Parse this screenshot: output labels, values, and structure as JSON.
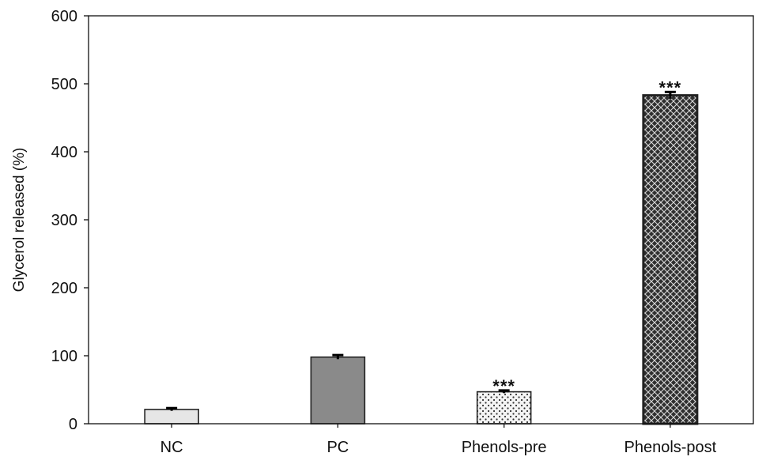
{
  "chart_data": {
    "type": "bar",
    "title": "",
    "xlabel": "",
    "ylabel": "Glycerol released (%)",
    "ylim": [
      0,
      600
    ],
    "yticks": [
      0,
      100,
      200,
      300,
      400,
      500,
      600
    ],
    "categories": [
      "NC",
      "PC",
      "Phenols-pre",
      "Phenols-post"
    ],
    "values": [
      21,
      98,
      47,
      483
    ],
    "errors": [
      2,
      3,
      2,
      5
    ],
    "annotations": [
      "",
      "",
      "***",
      "***"
    ],
    "fill_styles": [
      "light-gray",
      "dark-gray",
      "dotted",
      "crosshatch"
    ],
    "colors": {
      "NC": "#e6e6e6",
      "PC": "#8a8a8a",
      "Phenols-pre": "#f2f2f2",
      "Phenols-post": "#3a3a3a"
    },
    "grid": false,
    "legend": "none"
  }
}
